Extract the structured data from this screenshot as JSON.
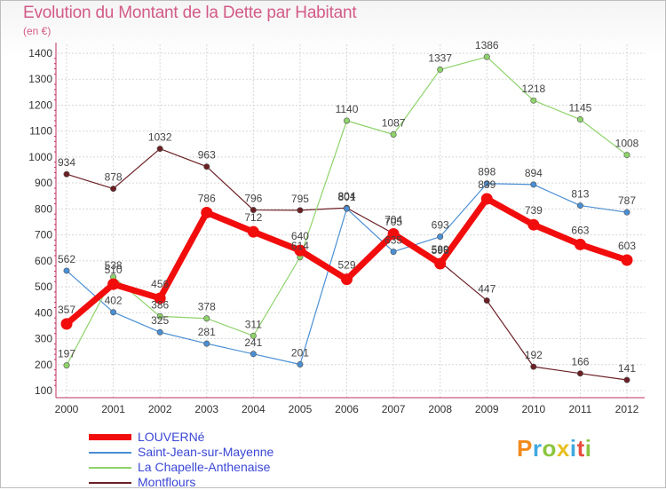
{
  "header": {
    "title": "Evolution du Montant de la Dette par Habitant",
    "unit": "(en €)"
  },
  "logo": {
    "text": "Proxiti",
    "colors": [
      "#f28a1c",
      "#3fa9e0",
      "#8bc53f",
      "#e8c020",
      "#3fa9e0",
      "#e84c3d",
      "#8bc53f"
    ]
  },
  "chart_data": {
    "type": "line",
    "title": "Evolution du Montant de la Dette par Habitant",
    "ylabel": "(en €)",
    "xlabel": "",
    "x": [
      "2000",
      "2001",
      "2002",
      "2003",
      "2004",
      "2005",
      "2006",
      "2007",
      "2008",
      "2009",
      "2010",
      "2011",
      "2012"
    ],
    "ylim": [
      100,
      1400
    ],
    "yticks": [
      "100",
      "200",
      "300",
      "400",
      "500",
      "600",
      "700",
      "800",
      "900",
      "1000",
      "1100",
      "1200",
      "1300",
      "1400"
    ],
    "grid": true,
    "legend_position": "bottom-left",
    "series": [
      {
        "name": "Montflours",
        "color": "#6b1f24",
        "width": 1.2,
        "values": [
          934,
          878,
          1032,
          963,
          796,
          795,
          804,
          705,
          596,
          447,
          192,
          166,
          141
        ],
        "labels": [
          "934",
          "878",
          "1032",
          "963",
          "796",
          "795",
          "804",
          "705",
          "596",
          "447",
          "192",
          "166",
          "141"
        ]
      },
      {
        "name": "Saint-Jean-sur-Mayenne",
        "color": "#4a8fd4",
        "width": 1.2,
        "values": [
          562,
          402,
          325,
          281,
          241,
          201,
          801,
          635,
          693,
          898,
          894,
          813,
          787
        ],
        "labels": [
          "562",
          "402",
          "325",
          "281",
          "241",
          "201",
          "801",
          "635",
          "693",
          "898",
          "894",
          "813",
          "787"
        ]
      },
      {
        "name": "La Chapelle-Anthenaise",
        "color": "#8ed36a",
        "width": 1.2,
        "values": [
          197,
          538,
          386,
          378,
          311,
          614,
          1140,
          1087,
          1337,
          1386,
          1218,
          1145,
          1008
        ],
        "labels": [
          "197",
          "538",
          "386",
          "378",
          "311",
          "614",
          "1140",
          "1087",
          "1337",
          "1386",
          "1218",
          "1145",
          "1008"
        ]
      },
      {
        "name": "LOUVERNé",
        "color": "#f20d0d",
        "width": 7,
        "values": [
          357,
          510,
          456,
          786,
          712,
          640,
          529,
          704,
          589,
          839,
          739,
          663,
          603
        ],
        "labels": [
          "357",
          "510",
          "456",
          "786",
          "712",
          "640",
          "529",
          "704",
          "589",
          "839",
          "739",
          "663",
          "603"
        ]
      }
    ],
    "legend": [
      {
        "name": "LOUVERNé",
        "color": "#f20d0d"
      },
      {
        "name": "Saint-Jean-sur-Mayenne",
        "color": "#4a8fd4"
      },
      {
        "name": "La Chapelle-Anthenaise",
        "color": "#8ed36a"
      },
      {
        "name": "Montflours",
        "color": "#6b1f24"
      }
    ]
  }
}
